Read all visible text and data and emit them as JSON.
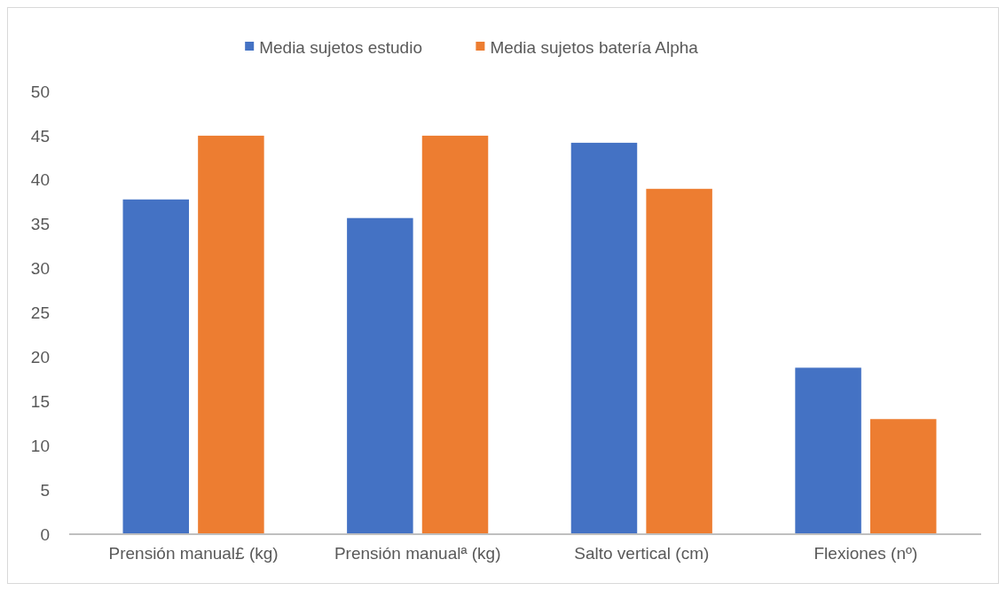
{
  "chart_data": {
    "type": "bar",
    "categories": [
      "Prensión manual£ (kg)",
      "Prensión manualª (kg)",
      "Salto vertical (cm)",
      "Flexiones (nº)"
    ],
    "series": [
      {
        "name": "Media sujetos estudio",
        "color": "#4472c4",
        "values": [
          37.8,
          35.7,
          44.2,
          18.8
        ]
      },
      {
        "name": "Media sujetos batería Alpha",
        "color": "#ed7d31",
        "values": [
          45.0,
          45.0,
          39.0,
          13.0
        ]
      }
    ],
    "ylim": [
      0,
      50
    ],
    "yticks": [
      0,
      5,
      10,
      15,
      20,
      25,
      30,
      35,
      40,
      45,
      50
    ],
    "grid": false,
    "legend": "top"
  }
}
